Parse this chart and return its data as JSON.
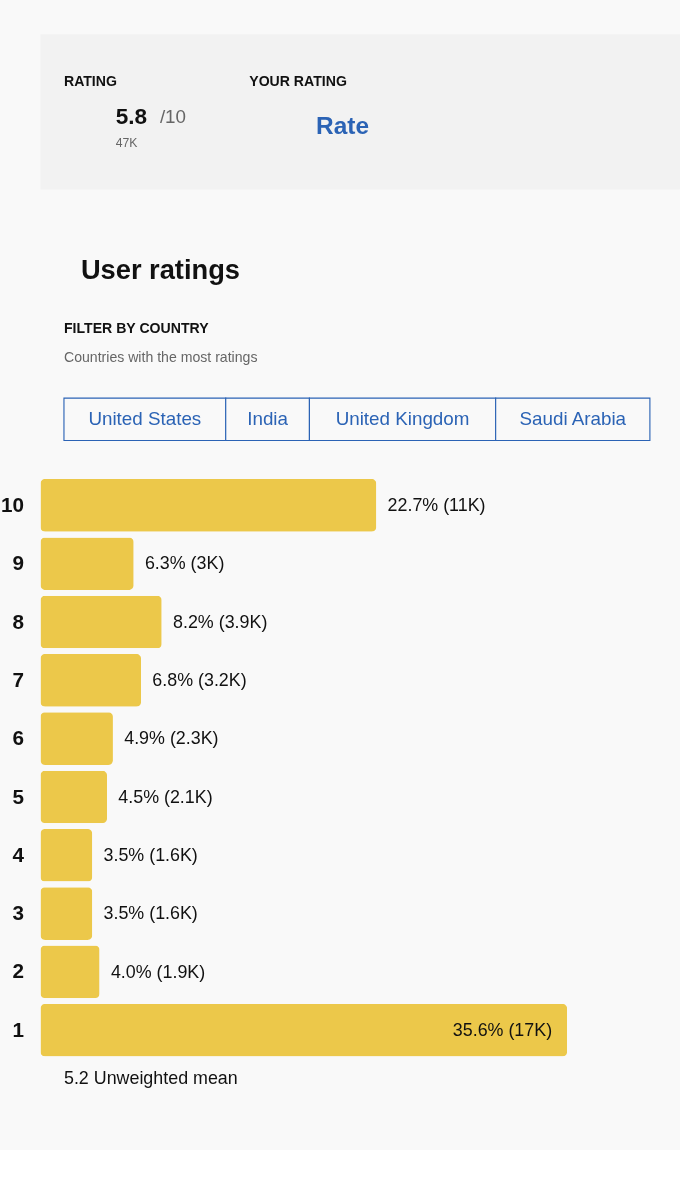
{
  "chart_data": {
    "type": "bar",
    "orientation": "horizontal",
    "title": "User ratings",
    "categories": [
      "10",
      "9",
      "8",
      "7",
      "6",
      "5",
      "4",
      "3",
      "2",
      "1"
    ],
    "values": [
      22.7,
      6.3,
      8.2,
      6.8,
      4.9,
      4.5,
      3.5,
      3.5,
      4.0,
      35.6
    ],
    "value_labels": [
      "22.7% (11K)",
      "6.3% (3K)",
      "8.2% (3.9K)",
      "6.8% (3.2K)",
      "4.9% (2.3K)",
      "4.5% (2.1K)",
      "3.5% (1.6K)",
      "3.5% (1.6K)",
      "4.0% (1.9K)",
      "35.6% (17K)"
    ],
    "color": "#ecc84a",
    "annotations": [
      "RATING",
      "5.8",
      "/10",
      "47K",
      "YOUR RATING",
      "Rate",
      "FILTER BY COUNTRY",
      "Countries with the most ratings",
      "United States",
      "India",
      "United Kingdom",
      "Saudi Arabia",
      "5.2 Unweighted mean"
    ]
  }
}
